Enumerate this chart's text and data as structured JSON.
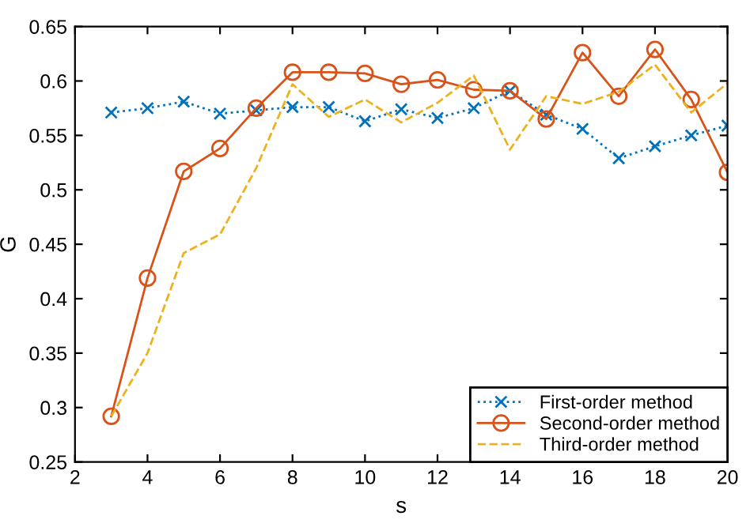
{
  "chart_data": {
    "type": "line",
    "xlabel": "s",
    "ylabel": "G",
    "xlim": [
      2,
      20
    ],
    "xticks": [
      2,
      4,
      6,
      8,
      10,
      12,
      14,
      16,
      18,
      20
    ],
    "ylim": [
      0.25,
      0.65
    ],
    "yticks": [
      0.25,
      0.3,
      0.35,
      0.4,
      0.45,
      0.5,
      0.55,
      0.6,
      0.65
    ],
    "grid": false,
    "legend": "bottom right",
    "x": [
      3,
      4,
      5,
      6,
      7,
      8,
      9,
      10,
      11,
      12,
      13,
      14,
      15,
      16,
      17,
      18,
      19,
      20
    ],
    "series": [
      {
        "name": "First-order method",
        "color": "#0072bd",
        "marker": "cross",
        "line_style": "dotted",
        "values": [
          0.571,
          0.575,
          0.581,
          0.57,
          0.573,
          0.576,
          0.576,
          0.563,
          0.574,
          0.566,
          0.575,
          0.591,
          0.569,
          0.556,
          0.529,
          0.54,
          0.55,
          0.559
        ]
      },
      {
        "name": "Second-order method",
        "color": "#d95319",
        "marker": "circle",
        "line_style": "solid",
        "values": [
          0.292,
          0.419,
          0.517,
          0.538,
          0.575,
          0.608,
          0.608,
          0.607,
          0.597,
          0.601,
          0.592,
          0.591,
          0.565,
          0.626,
          0.586,
          0.629,
          0.583,
          0.516
        ]
      },
      {
        "name": "Third-order method",
        "color": "#edb120",
        "marker": "none",
        "line_style": "dashed",
        "values": [
          0.292,
          0.35,
          0.442,
          0.459,
          0.52,
          0.597,
          0.567,
          0.583,
          0.562,
          0.58,
          0.605,
          0.537,
          0.586,
          0.579,
          0.59,
          0.615,
          0.571,
          0.598
        ]
      }
    ]
  }
}
